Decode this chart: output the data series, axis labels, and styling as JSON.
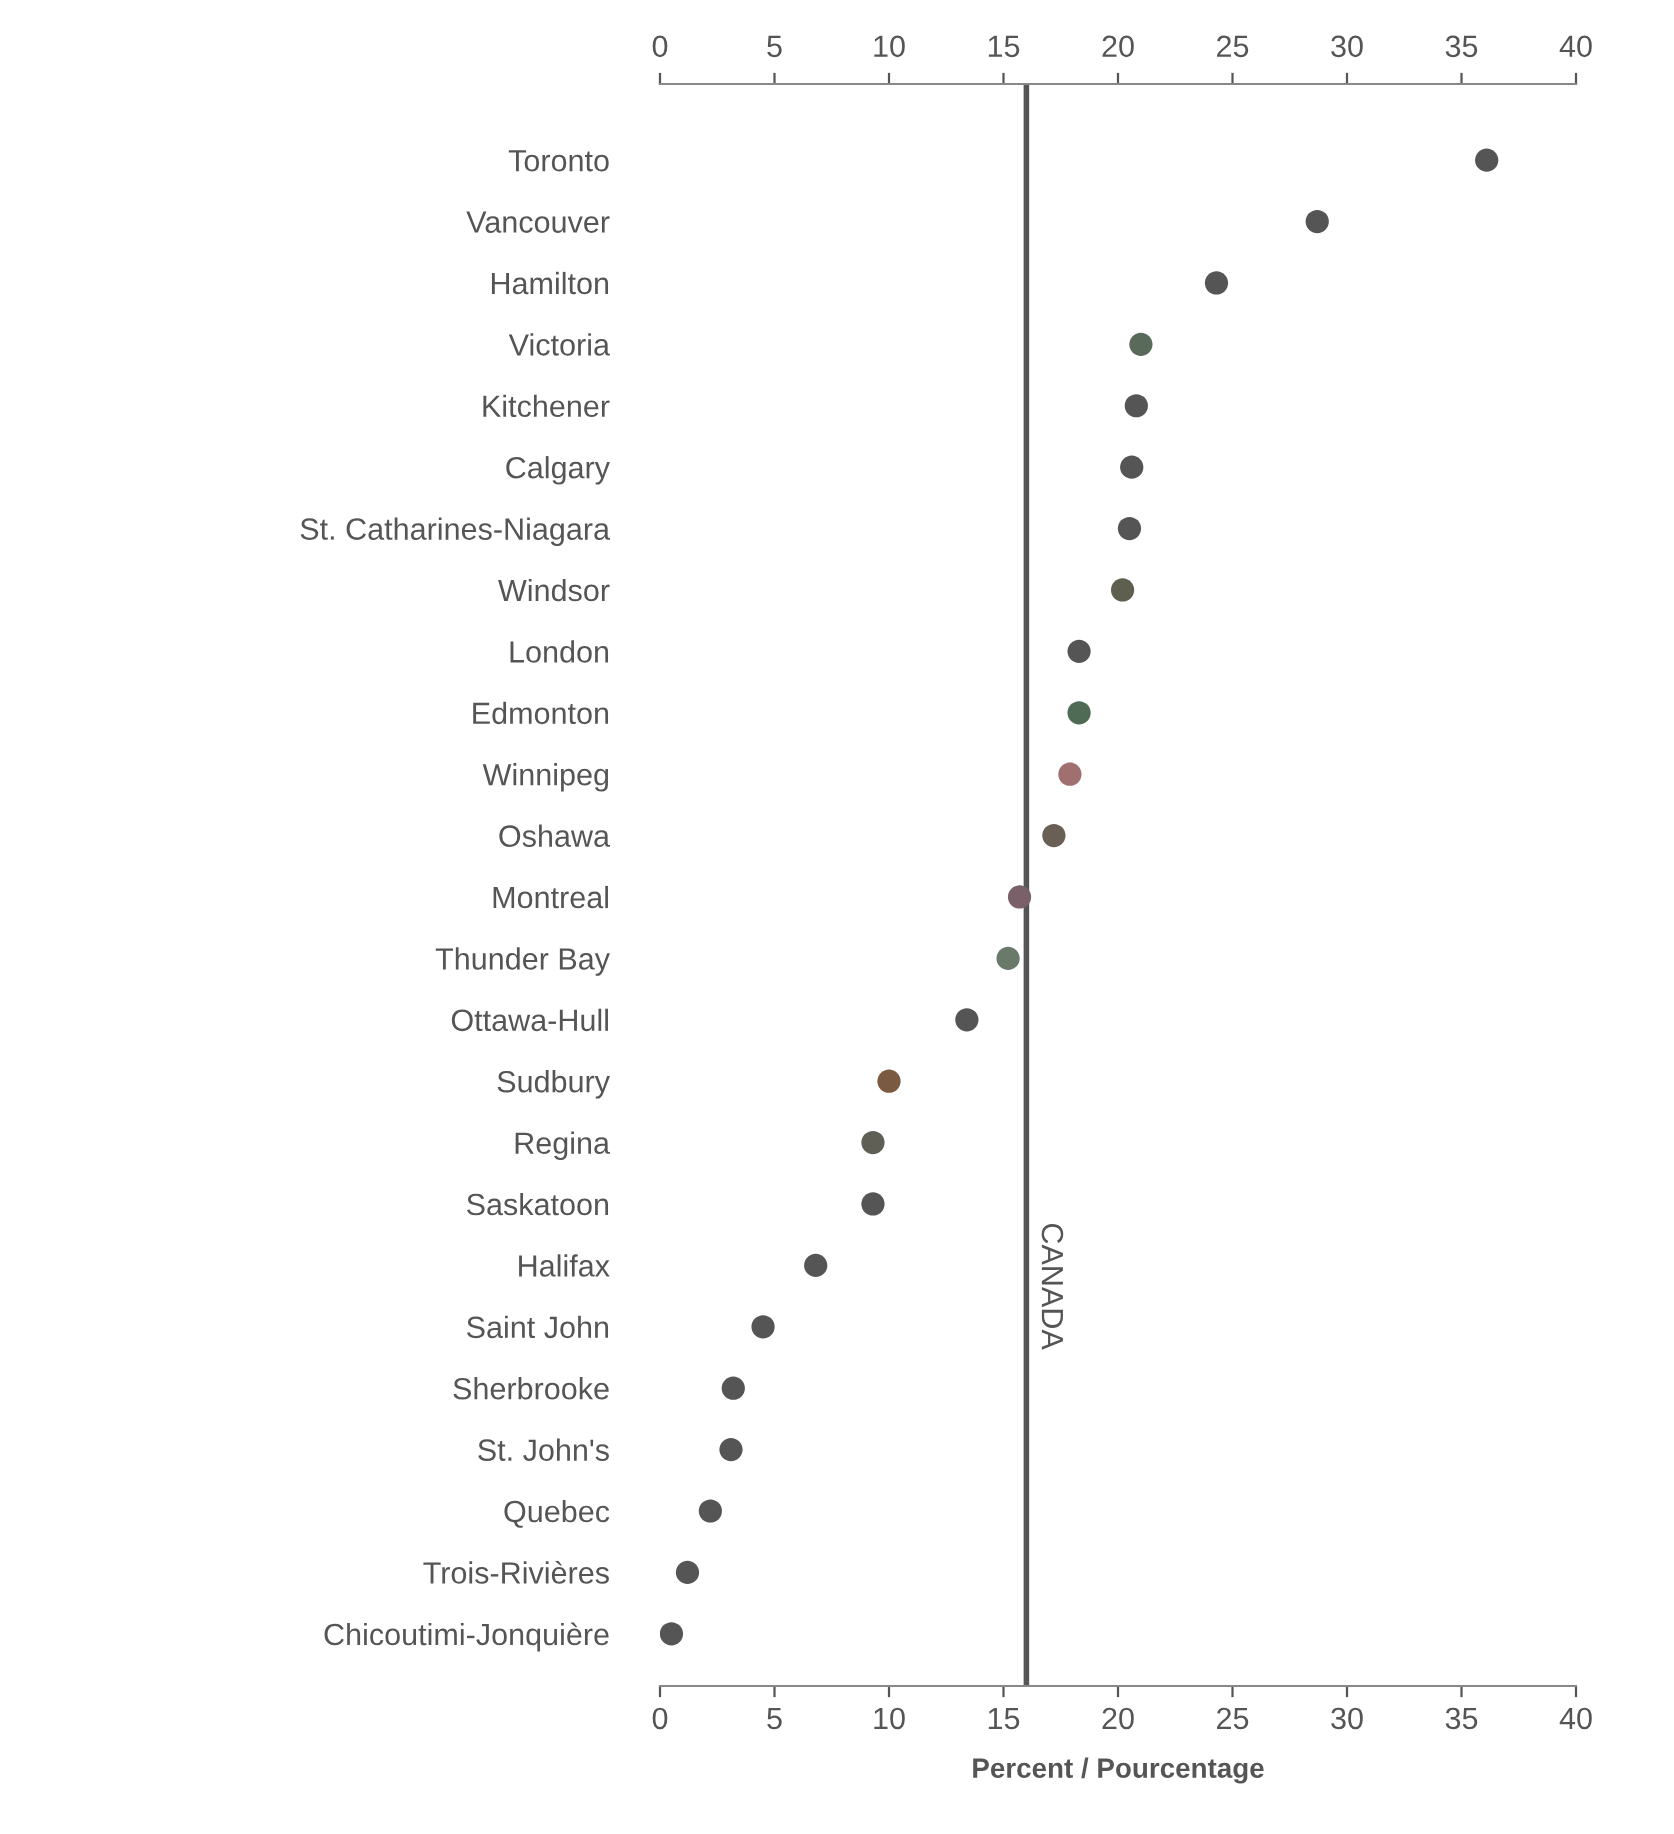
{
  "chart_data": {
    "type": "scatter",
    "xlabel": "Percent / Pourcentage",
    "categories": [
      "Toronto",
      "Vancouver",
      "Hamilton",
      "Victoria",
      "Kitchener",
      "Calgary",
      "St. Catharines-Niagara",
      "Windsor",
      "London",
      "Edmonton",
      "Winnipeg",
      "Oshawa",
      "Montreal",
      "Thunder Bay",
      "Ottawa-Hull",
      "Sudbury",
      "Regina",
      "Saskatoon",
      "Halifax",
      "Saint John",
      "Sherbrooke",
      "St. John's",
      "Quebec",
      "Trois-Rivières",
      "Chicoutimi-Jonquière"
    ],
    "values": [
      36.1,
      28.7,
      24.3,
      21.0,
      20.8,
      20.6,
      20.5,
      20.2,
      18.3,
      18.3,
      17.9,
      17.2,
      15.7,
      15.2,
      13.4,
      10.0,
      9.3,
      9.3,
      6.8,
      4.5,
      3.2,
      3.1,
      2.2,
      1.2,
      0.5
    ],
    "colors": [
      "#555555",
      "#555555",
      "#555555",
      "#5a6a5a",
      "#555555",
      "#555555",
      "#555555",
      "#5f5f50",
      "#555555",
      "#4f6a55",
      "#a07070",
      "#6a5f55",
      "#7a6068",
      "#6a7a6a",
      "#555555",
      "#7a5a40",
      "#5f5f55",
      "#555555",
      "#555555",
      "#555555",
      "#555555",
      "#555555",
      "#555555",
      "#555555",
      "#555555"
    ],
    "xlim": [
      0,
      40
    ],
    "xticks": [
      0,
      5,
      10,
      15,
      20,
      25,
      30,
      35,
      40
    ],
    "x2lim": [
      0,
      40
    ],
    "x2ticks": [
      0,
      5,
      10,
      15,
      20,
      25,
      30,
      35,
      40
    ],
    "ref_lines": [
      {
        "axis": "x",
        "value": 16,
        "label": "CANADA",
        "color": "#555555"
      }
    ],
    "orientation": "horizontal",
    "marker": "circle",
    "grid": false,
    "legend": false
  }
}
